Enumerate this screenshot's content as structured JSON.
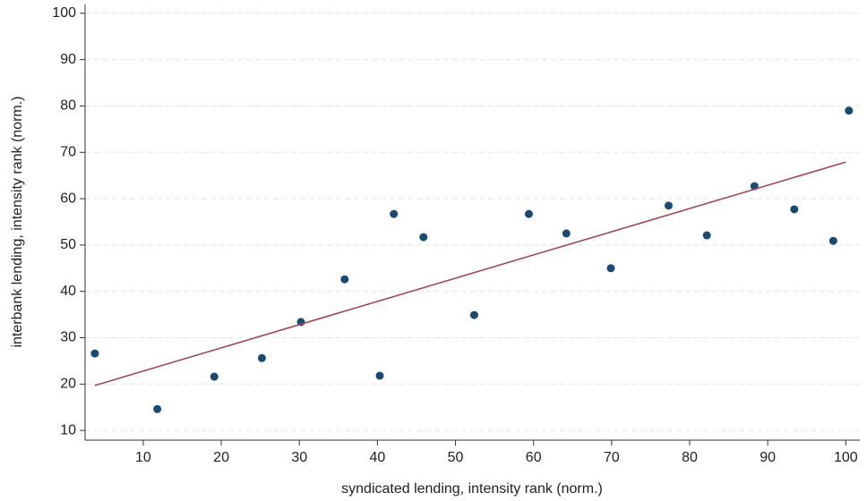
{
  "chart_data": {
    "type": "scatter",
    "x_label": "syndicated lending, intensity rank (norm.)",
    "y_label": "interbank lending, intensity rank (norm.)",
    "x": [
      3.8,
      11.8,
      19.1,
      25.2,
      30.2,
      35.8,
      40.3,
      42.1,
      45.9,
      52.4,
      59.4,
      64.2,
      69.9,
      77.3,
      82.2,
      88.3,
      93.4,
      98.4,
      100.4
    ],
    "values": [
      26.6,
      14.6,
      21.6,
      25.6,
      33.4,
      42.6,
      21.8,
      56.7,
      51.7,
      34.9,
      56.7,
      52.5,
      45.0,
      58.5,
      52.1,
      62.7,
      57.7,
      50.9,
      79.0
    ],
    "color": "#1a4a72",
    "fit_line": {
      "x": [
        3.8,
        100
      ],
      "y": [
        19.7,
        67.9
      ],
      "color": "#a04850"
    },
    "xlim": [
      2.55,
      101.8
    ],
    "xticks": [
      10,
      20,
      30,
      40,
      50,
      60,
      70,
      80,
      90,
      100
    ],
    "ylim": [
      7.9,
      101.9
    ],
    "yticks": [
      10,
      20,
      30,
      40,
      50,
      60,
      70,
      80,
      90,
      100
    ],
    "grid": true
  }
}
